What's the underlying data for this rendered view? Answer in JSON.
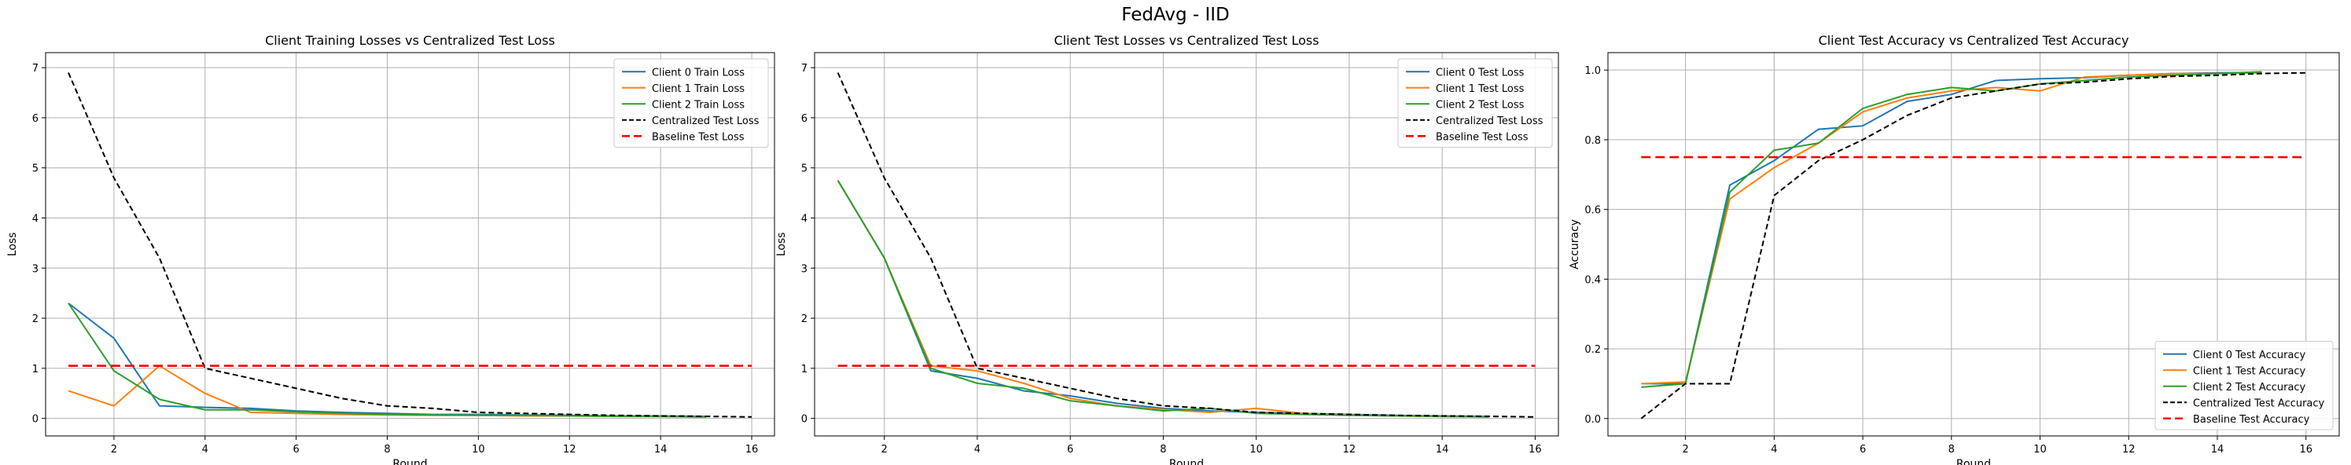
{
  "figure": {
    "suptitle": "FedAvg - IID"
  },
  "colors": {
    "client0": "#1f77b4",
    "client1": "#ff7f0e",
    "client2": "#2ca02c",
    "centralized": "#000000",
    "baseline": "#ff0000",
    "grid": "#b0b0b0"
  },
  "chart_data": [
    {
      "type": "line",
      "title": "Client Training Losses vs Centralized Test Loss",
      "xlabel": "Round",
      "ylabel": "Loss",
      "xlim": [
        0.5,
        16.5
      ],
      "ylim": [
        -0.35,
        7.3
      ],
      "xticks": [
        2,
        4,
        6,
        8,
        10,
        12,
        14,
        16
      ],
      "yticks": [
        0,
        1,
        2,
        3,
        4,
        5,
        6,
        7
      ],
      "legend_position": "top-right",
      "grid": true,
      "series": [
        {
          "name": "Client 0 Train Loss",
          "style": "solid",
          "color": "#1f77b4",
          "x": [
            1,
            2,
            3,
            4,
            5,
            6,
            7,
            8,
            9,
            10,
            11,
            12,
            13,
            14,
            15
          ],
          "y": [
            2.3,
            1.6,
            0.25,
            0.22,
            0.2,
            0.15,
            0.12,
            0.1,
            0.08,
            0.08,
            0.07,
            0.06,
            0.05,
            0.05,
            0.04
          ]
        },
        {
          "name": "Client 1 Train Loss",
          "style": "solid",
          "color": "#ff7f0e",
          "x": [
            1,
            2,
            3,
            4,
            5,
            6,
            7,
            8,
            9,
            10,
            11,
            12,
            13,
            14,
            15
          ],
          "y": [
            0.55,
            0.25,
            1.05,
            0.5,
            0.12,
            0.1,
            0.08,
            0.07,
            0.06,
            0.06,
            0.05,
            0.05,
            0.04,
            0.04,
            0.03
          ]
        },
        {
          "name": "Client 2 Train Loss",
          "style": "solid",
          "color": "#2ca02c",
          "x": [
            1,
            2,
            3,
            4,
            5,
            6,
            7,
            8,
            9,
            10,
            11,
            12,
            13,
            14,
            15
          ],
          "y": [
            2.3,
            0.95,
            0.38,
            0.17,
            0.17,
            0.13,
            0.1,
            0.08,
            0.07,
            0.06,
            0.06,
            0.05,
            0.04,
            0.04,
            0.03
          ]
        },
        {
          "name": "Centralized Test Loss",
          "style": "dashed",
          "color": "#000000",
          "x": [
            1,
            2,
            3,
            4,
            5,
            6,
            7,
            8,
            9,
            10,
            11,
            12,
            13,
            14,
            15,
            16
          ],
          "y": [
            6.9,
            4.8,
            3.2,
            1.0,
            0.8,
            0.6,
            0.4,
            0.25,
            0.2,
            0.12,
            0.1,
            0.08,
            0.06,
            0.05,
            0.04,
            0.03
          ]
        },
        {
          "name": "Baseline Test Loss",
          "style": "baseline",
          "color": "#ff0000",
          "x": [
            1,
            16
          ],
          "y": [
            1.05,
            1.05
          ]
        }
      ]
    },
    {
      "type": "line",
      "title": "Client Test Losses vs Centralized Test Loss",
      "xlabel": "Round",
      "ylabel": "Loss",
      "xlim": [
        0.5,
        16.5
      ],
      "ylim": [
        -0.35,
        7.3
      ],
      "xticks": [
        2,
        4,
        6,
        8,
        10,
        12,
        14,
        16
      ],
      "yticks": [
        0,
        1,
        2,
        3,
        4,
        5,
        6,
        7
      ],
      "legend_position": "top-right",
      "grid": true,
      "series": [
        {
          "name": "Client 0 Test Loss",
          "style": "solid",
          "color": "#1f77b4",
          "x": [
            1,
            2,
            3,
            4,
            5,
            6,
            7,
            8,
            9,
            10,
            11,
            12,
            13,
            14,
            15
          ],
          "y": [
            4.75,
            3.2,
            0.95,
            0.8,
            0.55,
            0.45,
            0.3,
            0.2,
            0.15,
            0.12,
            0.1,
            0.08,
            0.06,
            0.05,
            0.04
          ]
        },
        {
          "name": "Client 1 Test Loss",
          "style": "solid",
          "color": "#ff7f0e",
          "x": [
            1,
            2,
            3,
            4,
            5,
            6,
            7,
            8,
            9,
            10,
            11,
            12,
            13,
            14,
            15
          ],
          "y": [
            4.75,
            3.2,
            1.05,
            0.95,
            0.7,
            0.4,
            0.25,
            0.18,
            0.12,
            0.2,
            0.1,
            0.07,
            0.05,
            0.04,
            0.03
          ]
        },
        {
          "name": "Client 2 Test Loss",
          "style": "solid",
          "color": "#2ca02c",
          "x": [
            1,
            2,
            3,
            4,
            5,
            6,
            7,
            8,
            9,
            10,
            11,
            12,
            13,
            14,
            15
          ],
          "y": [
            4.75,
            3.2,
            1.0,
            0.7,
            0.6,
            0.35,
            0.25,
            0.15,
            0.2,
            0.1,
            0.08,
            0.06,
            0.05,
            0.04,
            0.03
          ]
        },
        {
          "name": "Centralized Test Loss",
          "style": "dashed",
          "color": "#000000",
          "x": [
            1,
            2,
            3,
            4,
            5,
            6,
            7,
            8,
            9,
            10,
            11,
            12,
            13,
            14,
            15,
            16
          ],
          "y": [
            6.9,
            4.8,
            3.2,
            1.0,
            0.8,
            0.6,
            0.4,
            0.25,
            0.2,
            0.12,
            0.1,
            0.08,
            0.06,
            0.05,
            0.04,
            0.03
          ]
        },
        {
          "name": "Baseline Test Loss",
          "style": "baseline",
          "color": "#ff0000",
          "x": [
            1,
            16
          ],
          "y": [
            1.05,
            1.05
          ]
        }
      ]
    },
    {
      "type": "line",
      "title": "Client Test Accuracy vs Centralized Test Accuracy",
      "xlabel": "Round",
      "ylabel": "Accuracy",
      "xlim": [
        0.25,
        16.75
      ],
      "ylim": [
        -0.05,
        1.05
      ],
      "xticks": [
        2,
        4,
        6,
        8,
        10,
        12,
        14,
        16
      ],
      "yticks": [
        0.0,
        0.2,
        0.4,
        0.6,
        0.8,
        1.0
      ],
      "ytick_labels": [
        "0.0",
        "0.2",
        "0.4",
        "0.6",
        "0.8",
        "1.0"
      ],
      "legend_position": "bottom-right",
      "grid": true,
      "series": [
        {
          "name": "Client 0 Test Accuracy",
          "style": "solid",
          "color": "#1f77b4",
          "x": [
            1,
            2,
            3,
            4,
            5,
            6,
            7,
            8,
            9,
            10,
            11,
            12,
            13,
            14,
            15
          ],
          "y": [
            0.1,
            0.1,
            0.67,
            0.74,
            0.83,
            0.84,
            0.91,
            0.93,
            0.97,
            0.975,
            0.978,
            0.985,
            0.99,
            0.992,
            0.993
          ]
        },
        {
          "name": "Client 1 Test Accuracy",
          "style": "solid",
          "color": "#ff7f0e",
          "x": [
            1,
            2,
            3,
            4,
            5,
            6,
            7,
            8,
            9,
            10,
            11,
            12,
            13,
            14,
            15
          ],
          "y": [
            0.1,
            0.105,
            0.63,
            0.72,
            0.79,
            0.88,
            0.92,
            0.94,
            0.95,
            0.94,
            0.98,
            0.985,
            0.99,
            0.99,
            0.992
          ]
        },
        {
          "name": "Client 2 Test Accuracy",
          "style": "solid",
          "color": "#2ca02c",
          "x": [
            1,
            2,
            3,
            4,
            5,
            6,
            7,
            8,
            9,
            10,
            11,
            12,
            13,
            14,
            15
          ],
          "y": [
            0.09,
            0.1,
            0.65,
            0.77,
            0.79,
            0.89,
            0.93,
            0.95,
            0.94,
            0.96,
            0.97,
            0.98,
            0.985,
            0.99,
            0.995
          ]
        },
        {
          "name": "Centralized Test Accuracy",
          "style": "dashed",
          "color": "#000000",
          "x": [
            1,
            2,
            3,
            4,
            5,
            6,
            7,
            8,
            9,
            10,
            11,
            12,
            13,
            14,
            15,
            16
          ],
          "y": [
            0.0,
            0.1,
            0.1,
            0.64,
            0.74,
            0.8,
            0.87,
            0.92,
            0.94,
            0.96,
            0.965,
            0.975,
            0.982,
            0.985,
            0.99,
            0.992
          ]
        },
        {
          "name": "Baseline Test Accuracy",
          "style": "baseline",
          "color": "#ff0000",
          "x": [
            1,
            16
          ],
          "y": [
            0.75,
            0.75
          ]
        }
      ]
    }
  ]
}
